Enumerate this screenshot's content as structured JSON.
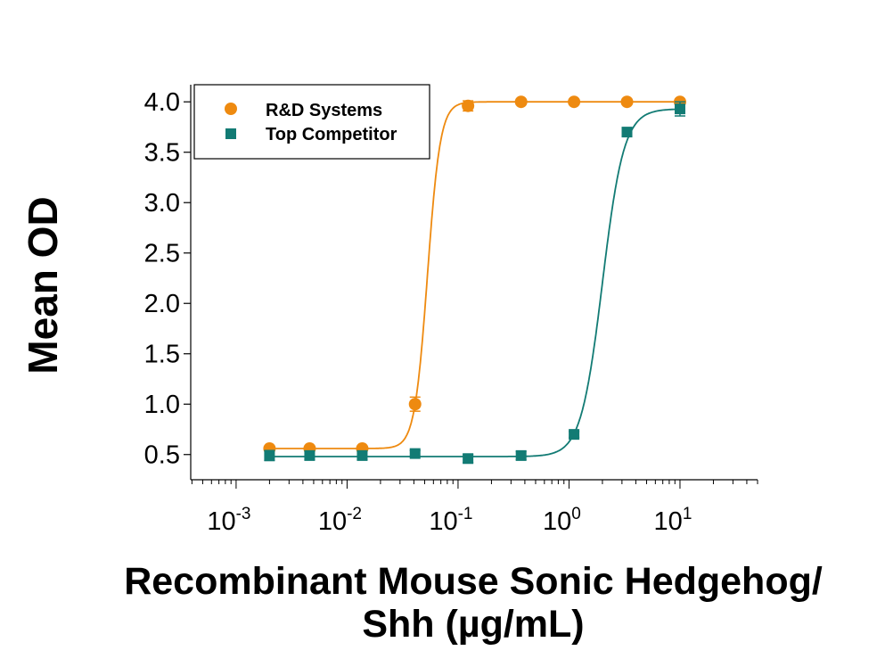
{
  "chart_data": {
    "type": "scatter",
    "xlabel_line1": "Recombinant Mouse Sonic Hedgehog/",
    "xlabel_line2": "Shh (µg/mL)",
    "ylabel": "Mean OD",
    "xscale": "log",
    "xlim": [
      0.00039,
      50
    ],
    "ylim": [
      0.25,
      4.17
    ],
    "xticks": [
      0.001,
      0.01,
      0.1,
      1,
      10
    ],
    "xtick_labels": [
      {
        "base": "10",
        "exp": "-3"
      },
      {
        "base": "10",
        "exp": "-2"
      },
      {
        "base": "10",
        "exp": "-1"
      },
      {
        "base": "10",
        "exp": "0"
      },
      {
        "base": "10",
        "exp": "1"
      }
    ],
    "yticks": [
      0.5,
      1.0,
      1.5,
      2.0,
      2.5,
      3.0,
      3.5,
      4.0
    ],
    "ytick_labels": [
      "0.5",
      "1.0",
      "1.5",
      "2.0",
      "2.5",
      "3.0",
      "3.5",
      "4.0"
    ],
    "grid": false,
    "legend_position": "top-left",
    "series": [
      {
        "name": "R&D Systems",
        "color": "#EE8A10",
        "marker": "circle",
        "x": [
          0.002,
          0.0046,
          0.0137,
          0.041,
          0.123,
          0.37,
          1.11,
          3.33,
          10
        ],
        "y": [
          0.56,
          0.56,
          0.56,
          1.0,
          3.96,
          4.0,
          4.0,
          4.0,
          4.0
        ],
        "err": [
          0.02,
          0.02,
          0.02,
          0.07,
          0.05,
          0.02,
          0.02,
          0.02,
          0.02
        ],
        "fit": {
          "bottom": 0.56,
          "top": 4.0,
          "ec50": 0.053,
          "hill": 7.5
        }
      },
      {
        "name": "Top Competitor",
        "color": "#127B74",
        "marker": "square",
        "x": [
          0.002,
          0.0046,
          0.0137,
          0.041,
          0.123,
          0.37,
          1.11,
          3.33,
          10
        ],
        "y": [
          0.49,
          0.49,
          0.49,
          0.51,
          0.46,
          0.49,
          0.7,
          3.7,
          3.93
        ],
        "err": [
          0.05,
          0.04,
          0.04,
          0.03,
          0.04,
          0.04,
          0.03,
          0.04,
          0.07
        ],
        "fit": {
          "bottom": 0.48,
          "top": 3.93,
          "ec50": 2.0,
          "hill": 4.5
        }
      }
    ]
  }
}
